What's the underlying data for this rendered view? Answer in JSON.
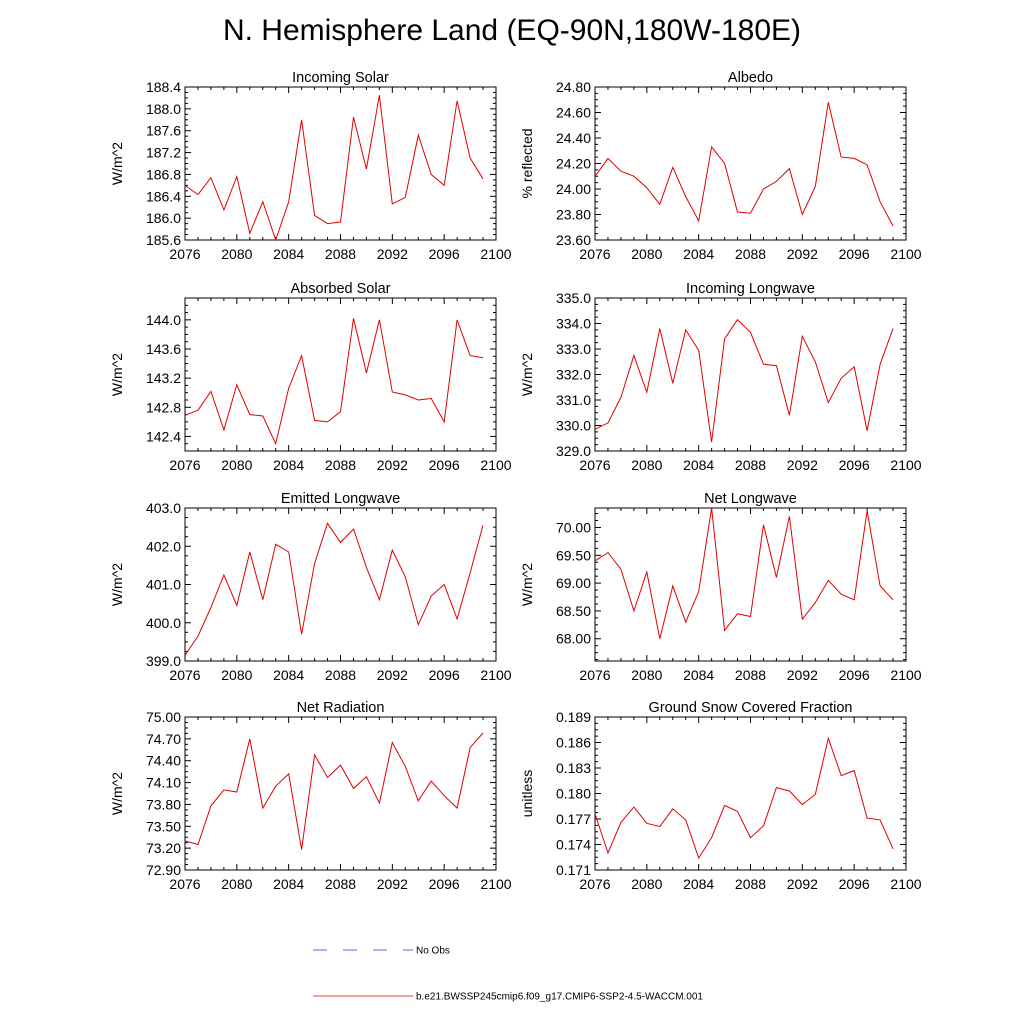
{
  "title": "N. Hemisphere Land (EQ-90N,180W-180E)",
  "legend": {
    "items": [
      {
        "label": "No Obs",
        "color": "#3333cc",
        "dash": true
      },
      {
        "label": "b.e21.BWSSP245cmip6.f09_g17.CMIP6-SSP2-4.5-WACCM.001",
        "color": "#e00000",
        "dash": false
      }
    ]
  },
  "chart_data": [
    {
      "type": "line",
      "title": "Incoming Solar",
      "ylabel": "W/m^2",
      "xlim": [
        2076,
        2100
      ],
      "ylim": [
        185.6,
        188.4
      ],
      "xticks": [
        2076,
        2080,
        2084,
        2088,
        2092,
        2096,
        2100
      ],
      "yticks": [
        185.6,
        186.0,
        186.4,
        186.8,
        187.2,
        187.6,
        188.0,
        188.4
      ],
      "ydecimals": 1,
      "series": [
        {
          "color": "#e00000",
          "x": [
            2076,
            2077,
            2078,
            2079,
            2080,
            2081,
            2082,
            2083,
            2084,
            2085,
            2086,
            2087,
            2088,
            2089,
            2090,
            2091,
            2092,
            2093,
            2094,
            2095,
            2096,
            2097,
            2098,
            2099
          ],
          "y": [
            186.6,
            186.43,
            186.74,
            186.15,
            186.76,
            185.72,
            186.3,
            185.6,
            186.3,
            187.8,
            186.05,
            185.9,
            185.93,
            187.85,
            186.9,
            188.25,
            186.26,
            186.38,
            187.52,
            186.8,
            186.6,
            188.15,
            187.1,
            186.72
          ]
        }
      ]
    },
    {
      "type": "line",
      "title": "Albedo",
      "ylabel": "% reflected",
      "xlim": [
        2076,
        2100
      ],
      "ylim": [
        23.6,
        24.8
      ],
      "xticks": [
        2076,
        2080,
        2084,
        2088,
        2092,
        2096,
        2100
      ],
      "yticks": [
        23.6,
        23.8,
        24.0,
        24.2,
        24.4,
        24.6,
        24.8
      ],
      "ydecimals": 2,
      "series": [
        {
          "color": "#e00000",
          "x": [
            2076,
            2077,
            2078,
            2079,
            2080,
            2081,
            2082,
            2083,
            2084,
            2085,
            2086,
            2087,
            2088,
            2089,
            2090,
            2091,
            2092,
            2093,
            2094,
            2095,
            2096,
            2097,
            2098,
            2099
          ],
          "y": [
            24.1,
            24.24,
            24.14,
            24.1,
            24.01,
            23.88,
            24.17,
            23.94,
            23.75,
            24.33,
            24.2,
            23.82,
            23.81,
            24.0,
            24.06,
            24.16,
            23.8,
            24.02,
            24.68,
            24.25,
            24.24,
            24.19,
            23.9,
            23.71
          ]
        }
      ]
    },
    {
      "type": "line",
      "title": "Absorbed Solar",
      "ylabel": "W/m^2",
      "xlim": [
        2076,
        2100
      ],
      "ylim": [
        142.2,
        144.3
      ],
      "xticks": [
        2076,
        2080,
        2084,
        2088,
        2092,
        2096,
        2100
      ],
      "yticks": [
        142.4,
        142.8,
        143.2,
        143.6,
        144.0
      ],
      "ydecimals": 1,
      "series": [
        {
          "color": "#e00000",
          "x": [
            2076,
            2077,
            2078,
            2079,
            2080,
            2081,
            2082,
            2083,
            2084,
            2085,
            2086,
            2087,
            2088,
            2089,
            2090,
            2091,
            2092,
            2093,
            2094,
            2095,
            2096,
            2097,
            2098,
            2099
          ],
          "y": [
            142.69,
            142.76,
            143.02,
            142.49,
            143.11,
            142.7,
            142.68,
            142.3,
            143.06,
            143.51,
            142.62,
            142.6,
            142.74,
            144.02,
            143.27,
            144.0,
            143.01,
            142.97,
            142.9,
            142.92,
            142.6,
            144.0,
            143.51,
            143.48
          ]
        }
      ]
    },
    {
      "type": "line",
      "title": "Incoming Longwave",
      "ylabel": "W/m^2",
      "xlim": [
        2076,
        2100
      ],
      "ylim": [
        329.0,
        335.0
      ],
      "xticks": [
        2076,
        2080,
        2084,
        2088,
        2092,
        2096,
        2100
      ],
      "yticks": [
        329.0,
        330.0,
        331.0,
        332.0,
        333.0,
        334.0,
        335.0
      ],
      "ydecimals": 1,
      "series": [
        {
          "color": "#e00000",
          "x": [
            2076,
            2077,
            2078,
            2079,
            2080,
            2081,
            2082,
            2083,
            2084,
            2085,
            2086,
            2087,
            2088,
            2089,
            2090,
            2091,
            2092,
            2093,
            2094,
            2095,
            2096,
            2097,
            2098,
            2099
          ],
          "y": [
            329.85,
            330.1,
            331.1,
            332.75,
            331.3,
            333.8,
            331.65,
            333.75,
            332.95,
            329.35,
            333.4,
            334.15,
            333.65,
            332.4,
            332.35,
            330.4,
            333.5,
            332.5,
            330.9,
            331.85,
            332.3,
            329.8,
            332.4,
            333.8
          ]
        }
      ]
    },
    {
      "type": "line",
      "title": "Emitted Longwave",
      "ylabel": "W/m^2",
      "xlim": [
        2076,
        2100
      ],
      "ylim": [
        399.0,
        403.0
      ],
      "xticks": [
        2076,
        2080,
        2084,
        2088,
        2092,
        2096,
        2100
      ],
      "yticks": [
        399.0,
        400.0,
        401.0,
        402.0,
        403.0
      ],
      "ydecimals": 1,
      "series": [
        {
          "color": "#e00000",
          "x": [
            2076,
            2077,
            2078,
            2079,
            2080,
            2081,
            2082,
            2083,
            2084,
            2085,
            2086,
            2087,
            2088,
            2089,
            2090,
            2091,
            2092,
            2093,
            2094,
            2095,
            2096,
            2097,
            2098,
            2099
          ],
          "y": [
            399.15,
            399.65,
            400.4,
            401.25,
            400.45,
            401.85,
            400.6,
            402.05,
            401.85,
            399.7,
            401.55,
            402.6,
            402.1,
            402.45,
            401.45,
            400.6,
            401.9,
            401.2,
            399.95,
            400.7,
            401.0,
            400.1,
            401.3,
            402.55
          ]
        }
      ]
    },
    {
      "type": "line",
      "title": "Net Longwave",
      "ylabel": "W/m^2",
      "xlim": [
        2076,
        2100
      ],
      "ylim": [
        67.6,
        70.35
      ],
      "xticks": [
        2076,
        2080,
        2084,
        2088,
        2092,
        2096,
        2100
      ],
      "yticks": [
        68.0,
        68.5,
        69.0,
        69.5,
        70.0
      ],
      "ydecimals": 2,
      "series": [
        {
          "color": "#e00000",
          "x": [
            2076,
            2077,
            2078,
            2079,
            2080,
            2081,
            2082,
            2083,
            2084,
            2085,
            2086,
            2087,
            2088,
            2089,
            2090,
            2091,
            2092,
            2093,
            2094,
            2095,
            2096,
            2097,
            2098,
            2099
          ],
          "y": [
            69.4,
            69.55,
            69.25,
            68.5,
            69.2,
            68.0,
            68.95,
            68.3,
            68.85,
            70.35,
            68.15,
            68.45,
            68.4,
            70.05,
            69.1,
            70.2,
            68.35,
            68.65,
            69.05,
            68.8,
            68.7,
            70.3,
            68.95,
            68.7
          ]
        }
      ]
    },
    {
      "type": "line",
      "title": "Net Radiation",
      "ylabel": "W/m^2",
      "xlim": [
        2076,
        2100
      ],
      "ylim": [
        72.9,
        75.0
      ],
      "xticks": [
        2076,
        2080,
        2084,
        2088,
        2092,
        2096,
        2100
      ],
      "yticks": [
        72.9,
        73.2,
        73.5,
        73.8,
        74.1,
        74.4,
        74.7,
        75.0
      ],
      "ydecimals": 2,
      "series": [
        {
          "color": "#e00000",
          "x": [
            2076,
            2077,
            2078,
            2079,
            2080,
            2081,
            2082,
            2083,
            2084,
            2085,
            2086,
            2087,
            2088,
            2089,
            2090,
            2091,
            2092,
            2093,
            2094,
            2095,
            2096,
            2097,
            2098,
            2099
          ],
          "y": [
            73.3,
            73.25,
            73.78,
            74.0,
            73.97,
            74.7,
            73.75,
            74.05,
            74.22,
            73.18,
            74.48,
            74.17,
            74.34,
            74.02,
            74.18,
            73.82,
            74.65,
            74.32,
            73.85,
            74.12,
            73.92,
            73.75,
            74.58,
            74.78
          ]
        }
      ]
    },
    {
      "type": "line",
      "title": "Ground Snow Covered Fraction",
      "ylabel": "unitless",
      "xlim": [
        2076,
        2100
      ],
      "ylim": [
        0.171,
        0.189
      ],
      "xticks": [
        2076,
        2080,
        2084,
        2088,
        2092,
        2096,
        2100
      ],
      "yticks": [
        0.171,
        0.174,
        0.177,
        0.18,
        0.183,
        0.186,
        0.189
      ],
      "ydecimals": 3,
      "series": [
        {
          "color": "#e00000",
          "x": [
            2076,
            2077,
            2078,
            2079,
            2080,
            2081,
            2082,
            2083,
            2084,
            2085,
            2086,
            2087,
            2088,
            2089,
            2090,
            2091,
            2092,
            2093,
            2094,
            2095,
            2096,
            2097,
            2098,
            2099
          ],
          "y": [
            0.1776,
            0.173,
            0.1766,
            0.1784,
            0.1765,
            0.1761,
            0.1782,
            0.1769,
            0.1724,
            0.1748,
            0.1786,
            0.1779,
            0.1748,
            0.1762,
            0.1807,
            0.1803,
            0.1787,
            0.1799,
            0.1865,
            0.1821,
            0.1827,
            0.1771,
            0.1769,
            0.1735
          ]
        }
      ]
    }
  ]
}
